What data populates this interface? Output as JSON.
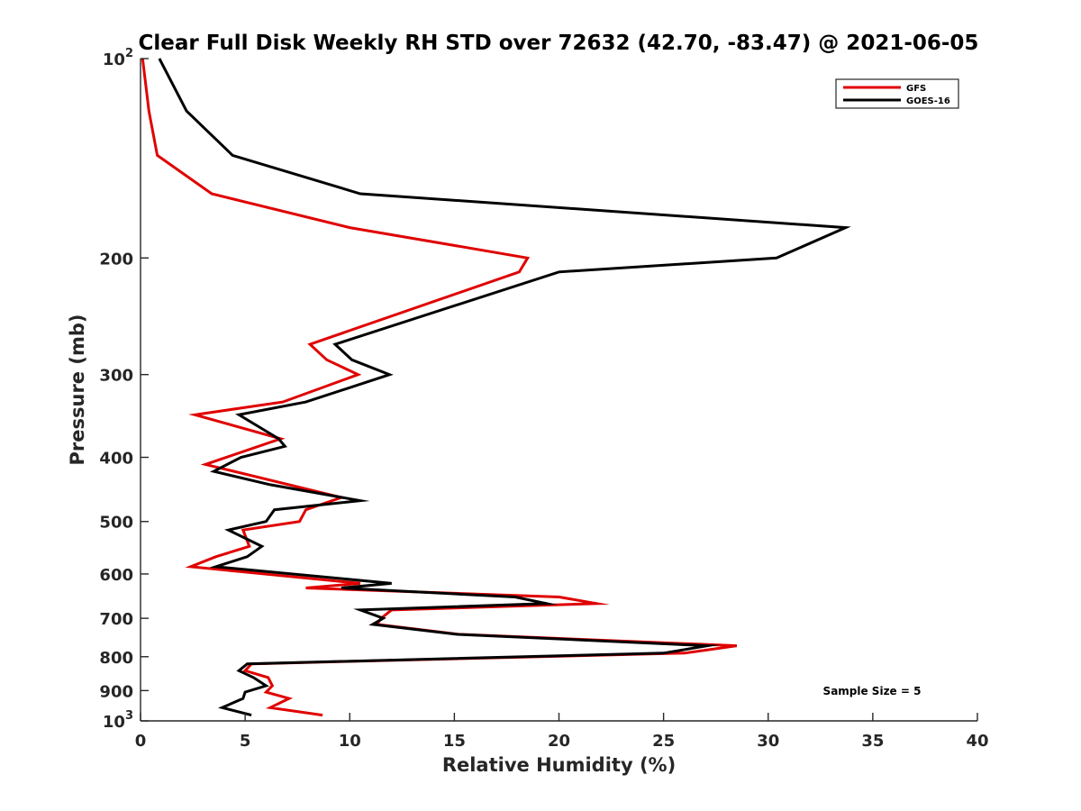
{
  "chart_data": {
    "type": "line",
    "title": "Clear Full Disk Weekly RH STD over 72632 (42.70, -83.47) @ 2021-06-05",
    "xlabel": "Relative Humidity (%)",
    "ylabel": "Pressure (mb)",
    "xlim": [
      0,
      40
    ],
    "ylim": [
      100,
      1000
    ],
    "yscale": "log",
    "y_reversed": true,
    "grid": false,
    "legend_position": "top-right",
    "x_ticks": [
      0,
      5,
      10,
      15,
      20,
      25,
      30,
      35,
      40
    ],
    "x_tick_labels": [
      "0",
      "5",
      "10",
      "15",
      "20",
      "25",
      "30",
      "35",
      "40"
    ],
    "y_ticks": [
      100,
      200,
      300,
      400,
      500,
      600,
      700,
      800,
      900,
      1000
    ],
    "y_tick_labels": [
      {
        "base": "10",
        "exp": "2"
      },
      {
        "base": "200",
        "exp": ""
      },
      {
        "base": "300",
        "exp": ""
      },
      {
        "base": "400",
        "exp": ""
      },
      {
        "base": "500",
        "exp": ""
      },
      {
        "base": "600",
        "exp": ""
      },
      {
        "base": "700",
        "exp": ""
      },
      {
        "base": "800",
        "exp": ""
      },
      {
        "base": "900",
        "exp": ""
      },
      {
        "base": "10",
        "exp": "3"
      }
    ],
    "annotation": "Sample Size = 5",
    "series": [
      {
        "name": "GFS",
        "color": "#e00000",
        "x": [
          0.1,
          0.4,
          0.8,
          3.4,
          10.0,
          18.5,
          18.1,
          8.1,
          8.9,
          10.4,
          6.8,
          2.6,
          6.7,
          3.1,
          9.6,
          7.9,
          7.6,
          4.9,
          5.2,
          3.6,
          2.4,
          10.5,
          7.9,
          20.0,
          21.8,
          12.0,
          11.5,
          11.3,
          15.2,
          28.5,
          26.0,
          5.3,
          5.0,
          6.1,
          6.3,
          6.0,
          7.1,
          6.2,
          8.7
        ],
        "y": [
          100,
          120,
          140,
          160,
          180,
          200,
          210,
          270,
          285,
          300,
          330,
          345,
          375,
          410,
          460,
          480,
          500,
          515,
          545,
          565,
          585,
          620,
          630,
          650,
          665,
          680,
          700,
          715,
          740,
          770,
          790,
          820,
          840,
          860,
          885,
          905,
          925,
          955,
          980
        ]
      },
      {
        "name": "GOES-16",
        "color": "#000000",
        "x": [
          0.9,
          2.2,
          4.4,
          10.5,
          33.7,
          30.4,
          20.0,
          9.3,
          10.1,
          11.9,
          7.9,
          4.7,
          6.6,
          6.9,
          4.8,
          3.5,
          6.2,
          10.5,
          6.4,
          6.0,
          4.2,
          5.8,
          5.1,
          3.6,
          12.0,
          9.6,
          17.9,
          19.4,
          10.5,
          11.6,
          11.1,
          15.1,
          27.1,
          25.0,
          5.1,
          4.7,
          5.4,
          6.0,
          5.0,
          4.9,
          3.9,
          5.3
        ],
        "y": [
          100,
          120,
          140,
          160,
          180,
          200,
          210,
          270,
          285,
          300,
          330,
          345,
          375,
          385,
          400,
          420,
          440,
          465,
          480,
          500,
          515,
          545,
          565,
          585,
          620,
          630,
          650,
          665,
          680,
          700,
          715,
          740,
          770,
          790,
          820,
          840,
          860,
          885,
          905,
          925,
          955,
          980
        ]
      }
    ]
  }
}
